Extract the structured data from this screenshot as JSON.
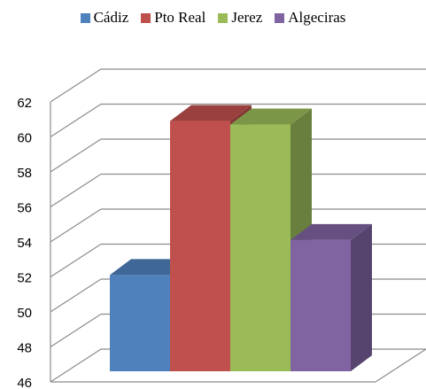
{
  "chart_data": {
    "type": "bar",
    "title": "",
    "xlabel": "",
    "ylabel": "",
    "categories": [
      "Cádiz",
      "Pto Real",
      "Jerez",
      "Algeciras"
    ],
    "values": [
      51.5,
      60.3,
      60.1,
      53.5
    ],
    "colors": {
      "Cádiz": "#4f81bd",
      "Pto Real": "#c0504d",
      "Jerez": "#9bbb59",
      "Algeciras": "#8064a2"
    },
    "ylim": [
      46,
      62
    ],
    "yticks": [
      46,
      48,
      50,
      52,
      54,
      56,
      58,
      60,
      62
    ],
    "grid": true,
    "legend": "top",
    "style": "3d-bar"
  }
}
